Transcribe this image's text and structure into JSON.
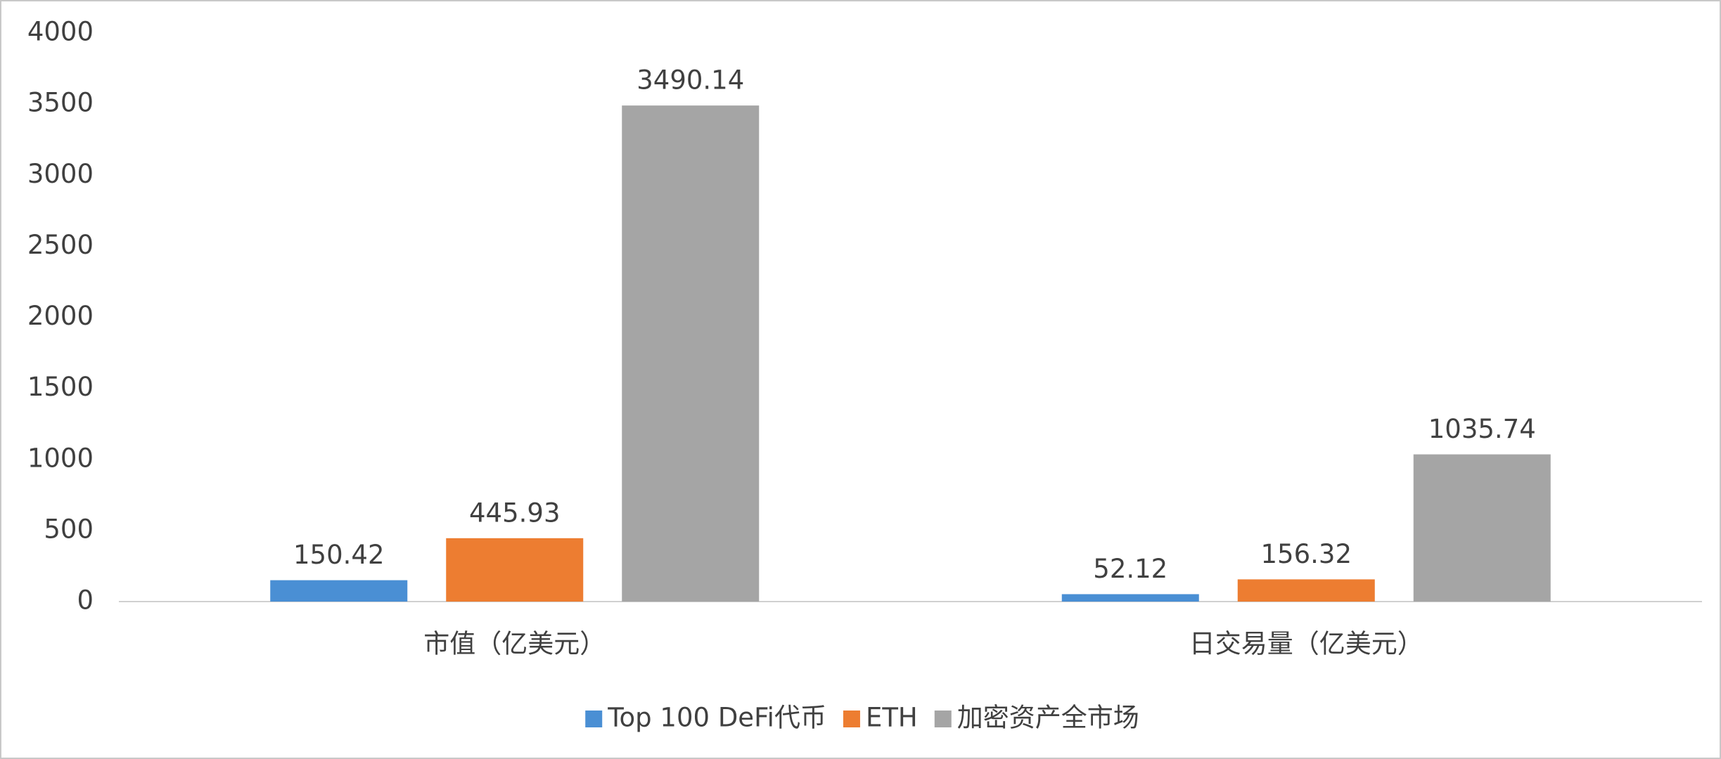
{
  "chart_data": {
    "type": "bar",
    "categories": [
      "市值（亿美元）",
      "日交易量（亿美元）"
    ],
    "series": [
      {
        "name": "Top 100 DeFi代币",
        "color": "#4a8fd4",
        "values": [
          150.42,
          52.12
        ]
      },
      {
        "name": "ETH",
        "color": "#ed7d31",
        "values": [
          445.93,
          156.32
        ]
      },
      {
        "name": "加密资产全市场",
        "color": "#a5a5a5",
        "values": [
          3490.14,
          1035.74
        ]
      }
    ],
    "ylim": [
      0,
      4000
    ],
    "yticks": [
      0,
      500,
      1000,
      1500,
      2000,
      2500,
      3000,
      3500,
      4000
    ],
    "legend": "bottom"
  }
}
